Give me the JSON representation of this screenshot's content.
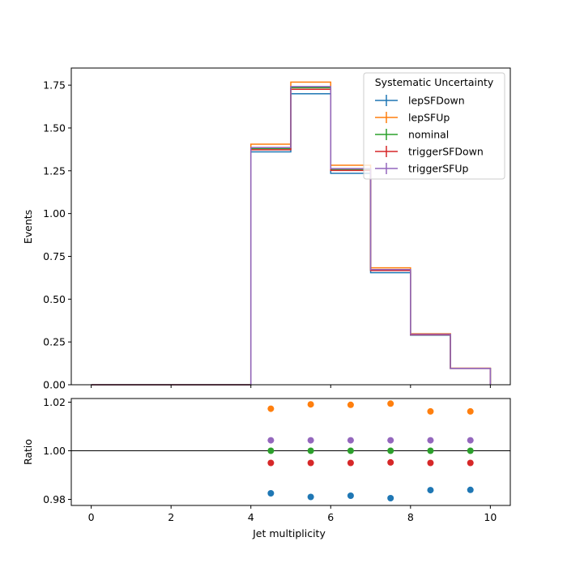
{
  "chart_data": [
    {
      "type": "step",
      "panel": "main",
      "title": "",
      "xlabel": "",
      "ylabel": "Events",
      "xlim": [
        -0.5,
        10.5
      ],
      "ylim": [
        0.0,
        1.85
      ],
      "yticks": [
        0.0,
        0.25,
        0.5,
        0.75,
        1.0,
        1.25,
        1.5,
        1.75
      ],
      "ytick_labels": [
        "0.00",
        "0.25",
        "0.50",
        "0.75",
        "1.00",
        "1.25",
        "1.50",
        "1.75"
      ],
      "xticks": [
        0,
        2,
        4,
        6,
        8,
        10
      ],
      "bin_edges": [
        0,
        1,
        2,
        3,
        4,
        5,
        6,
        7,
        8,
        9,
        10
      ],
      "legend": {
        "title": "Systematic Uncertainty",
        "placement": "top-right"
      },
      "series": [
        {
          "name": "lepSFDown",
          "color": "#1f77b4",
          "values": [
            0,
            0,
            0,
            0,
            1.36,
            1.7,
            1.235,
            0.655,
            0.29,
            0.095
          ]
        },
        {
          "name": "lepSFUp",
          "color": "#ff7f0e",
          "values": [
            0,
            0,
            0,
            0,
            1.405,
            1.768,
            1.282,
            0.683,
            0.298,
            0.097
          ]
        },
        {
          "name": "nominal",
          "color": "#2ca02c",
          "values": [
            0,
            0,
            0,
            0,
            1.38,
            1.735,
            1.258,
            0.67,
            0.294,
            0.096
          ]
        },
        {
          "name": "triggerSFDown",
          "color": "#d62728",
          "values": [
            0,
            0,
            0,
            0,
            1.373,
            1.726,
            1.252,
            0.667,
            0.292,
            0.095
          ]
        },
        {
          "name": "triggerSFUp",
          "color": "#9467bd",
          "values": [
            0,
            0,
            0,
            0,
            1.386,
            1.742,
            1.263,
            0.673,
            0.295,
            0.096
          ]
        }
      ]
    },
    {
      "type": "scatter",
      "panel": "ratio",
      "xlabel": "Jet multiplicity",
      "ylabel": "Ratio",
      "xlim": [
        -0.5,
        10.5
      ],
      "ylim": [
        0.9775,
        1.0215
      ],
      "reference_line": 1.0,
      "yticks": [
        0.98,
        1.0,
        1.02
      ],
      "ytick_labels": [
        "0.98",
        "1.00",
        "1.02"
      ],
      "xticks": [
        0,
        2,
        4,
        6,
        8,
        10
      ],
      "xtick_labels": [
        "0",
        "2",
        "4",
        "6",
        "8",
        "10"
      ],
      "x": [
        4.5,
        5.5,
        6.5,
        7.5,
        8.5,
        9.5
      ],
      "series": [
        {
          "name": "lepSFDown",
          "color": "#1f77b4",
          "values": [
            0.9825,
            0.981,
            0.9815,
            0.9805,
            0.9838,
            0.9839
          ]
        },
        {
          "name": "lepSFUp",
          "color": "#ff7f0e",
          "values": [
            1.0173,
            1.0191,
            1.0189,
            1.0194,
            1.0162,
            1.0162
          ]
        },
        {
          "name": "nominal",
          "color": "#2ca02c",
          "values": [
            1.0,
            1.0,
            1.0,
            1.0,
            1.0,
            1.0
          ]
        },
        {
          "name": "triggerSFDown",
          "color": "#d62728",
          "values": [
            0.995,
            0.995,
            0.995,
            0.9952,
            0.995,
            0.995
          ]
        },
        {
          "name": "triggerSFUp",
          "color": "#9467bd",
          "values": [
            1.0043,
            1.0043,
            1.0043,
            1.0043,
            1.0043,
            1.0043
          ]
        }
      ]
    }
  ]
}
